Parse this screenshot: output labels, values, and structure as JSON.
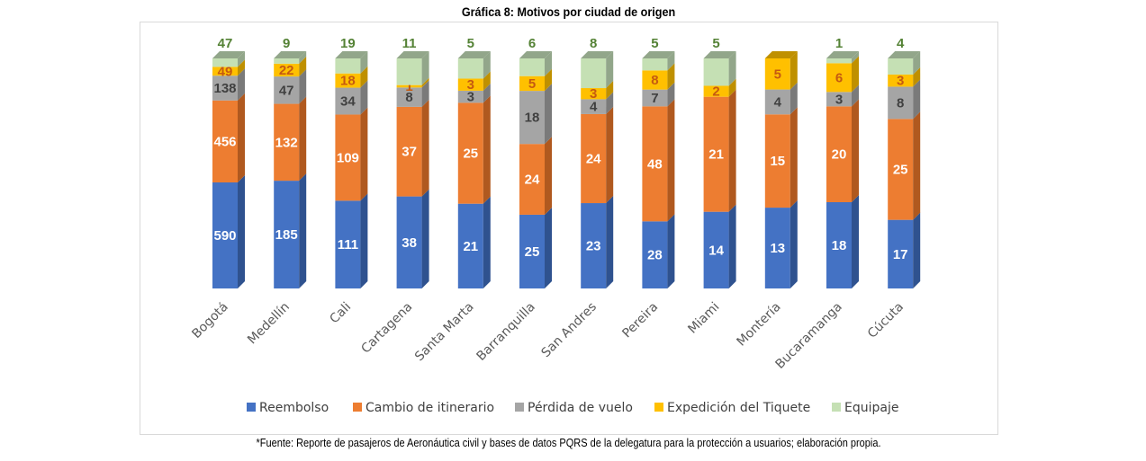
{
  "chart_data": {
    "type": "bar",
    "stacked": "percent",
    "three_d": true,
    "title": "Gráfica 8: Motivos por ciudad de origen",
    "source": "*Fuente: Reporte de pasajeros de Aeronáutica civil y bases de datos PQRS de la delegatura para la protección a usuarios; elaboración propia.",
    "categories": [
      "Bogotá",
      "Medellín",
      "Cali",
      "Cartagena",
      "Santa Marta",
      "Barranquilla",
      "San Andres",
      "Pereira",
      "Miami",
      "Montería",
      "Bucaramanga",
      "Cúcuta"
    ],
    "series": [
      {
        "name": "Reembolso",
        "color": "#4472C4",
        "values": [
          590,
          185,
          111,
          38,
          21,
          25,
          23,
          28,
          14,
          13,
          18,
          17
        ]
      },
      {
        "name": "Cambio de itinerario",
        "color": "#ED7D31",
        "values": [
          456,
          132,
          109,
          37,
          25,
          24,
          24,
          48,
          21,
          15,
          20,
          25
        ]
      },
      {
        "name": "Pérdida de vuelo",
        "color": "#A5A5A5",
        "values": [
          138,
          47,
          34,
          8,
          3,
          18,
          4,
          7,
          null,
          4,
          3,
          8
        ]
      },
      {
        "name": "Expedición del Tiquete",
        "color": "#FFC000",
        "values": [
          49,
          22,
          18,
          1,
          3,
          5,
          3,
          8,
          2,
          5,
          6,
          3
        ]
      },
      {
        "name": "Equipaje",
        "color": "#C5E0B4",
        "values": [
          47,
          9,
          19,
          11,
          5,
          6,
          8,
          5,
          5,
          null,
          1,
          4
        ]
      }
    ],
    "legend_position": "bottom",
    "grid": false
  }
}
